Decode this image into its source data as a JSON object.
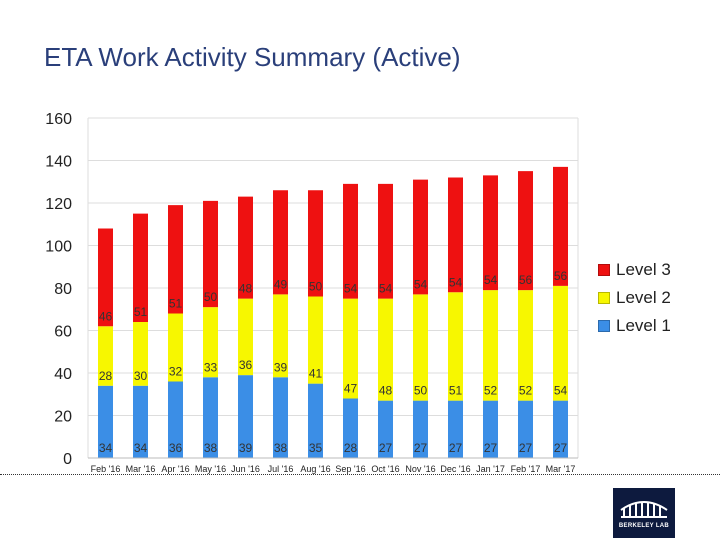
{
  "slide": {
    "title": "ETA Work Activity Summary (Active)",
    "logo_text": "BERKELEY LAB"
  },
  "colors": {
    "level1": "#3b8ee6",
    "level2": "#f7f700",
    "level3": "#ee1111",
    "title": "#2a3f7a",
    "grid": "#dddddd"
  },
  "chart_data": {
    "type": "bar",
    "stacked": true,
    "title": "",
    "xlabel": "",
    "ylabel": "",
    "ylim": [
      0,
      160
    ],
    "yticks": [
      0,
      20,
      40,
      60,
      80,
      100,
      120,
      140,
      160
    ],
    "grid": true,
    "legend_position": "right",
    "categories": [
      "Feb '16",
      "Mar '16",
      "Apr '16",
      "May '16",
      "Jun '16",
      "Jul '16",
      "Aug '16",
      "Sep '16",
      "Oct '16",
      "Nov '16",
      "Dec '16",
      "Jan '17",
      "Feb '17",
      "Mar '17"
    ],
    "series": [
      {
        "name": "Level 1",
        "values": [
          34,
          34,
          36,
          38,
          39,
          38,
          35,
          28,
          27,
          27,
          27,
          27,
          27,
          27
        ]
      },
      {
        "name": "Level 2",
        "values": [
          28,
          30,
          32,
          33,
          36,
          39,
          41,
          47,
          48,
          50,
          51,
          52,
          52,
          54
        ]
      },
      {
        "name": "Level 3",
        "values": [
          46,
          51,
          51,
          50,
          48,
          49,
          50,
          54,
          54,
          54,
          54,
          54,
          56,
          56
        ]
      }
    ],
    "legend": [
      "Level 3",
      "Level 2",
      "Level 1"
    ]
  }
}
